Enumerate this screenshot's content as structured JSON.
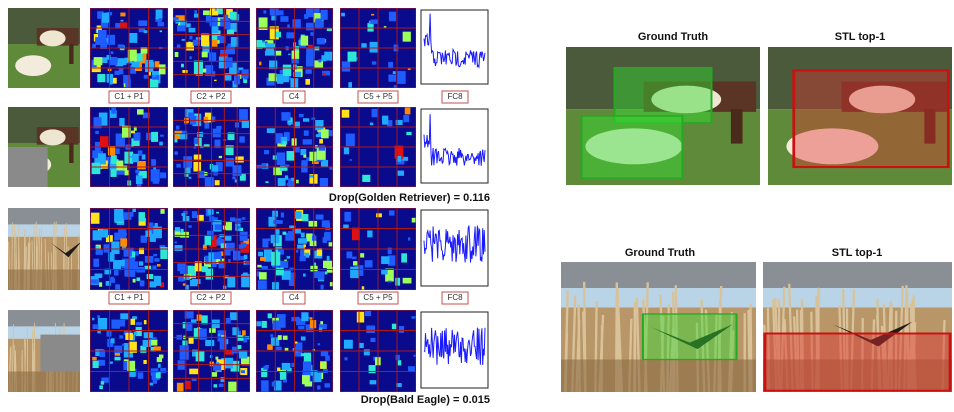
{
  "left_panel": {
    "groups": [
      {
        "layer_labels": [
          "C1 + P1",
          "C2 + P2",
          "C4",
          "C5 + P5",
          "FC8"
        ],
        "drop_label": "Drop(Golden Retriever) = 0.116"
      },
      {
        "layer_labels": [
          "C1 + P1",
          "C2 + P2",
          "C4",
          "C5 + P5",
          "FC8"
        ],
        "drop_label": "Drop(Bald Eagle) = 0.015"
      }
    ]
  },
  "right_panel": {
    "examples": [
      {
        "ground_truth_title": "Ground Truth",
        "prediction_title": "STL top-1"
      },
      {
        "ground_truth_title": "Ground Truth",
        "prediction_title": "STL top-1"
      }
    ]
  }
}
